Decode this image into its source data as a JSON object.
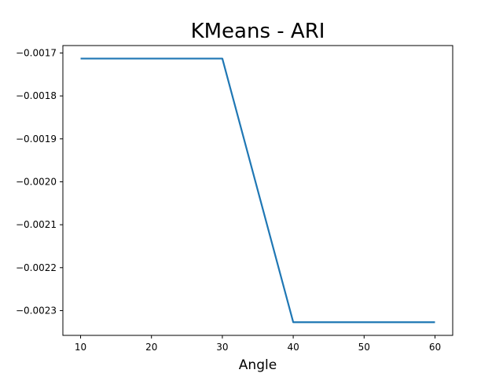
{
  "chart_data": {
    "type": "line",
    "title": "KMeans - ARI",
    "xlabel": "Angle",
    "ylabel": "",
    "x": [
      10,
      20,
      30,
      40,
      50,
      60
    ],
    "series": [
      {
        "values": [
          -0.001713,
          -0.001713,
          -0.001713,
          -0.002327,
          -0.002327,
          -0.002327
        ],
        "color": "#1f77b4"
      }
    ],
    "xticks": [
      10,
      20,
      30,
      40,
      50,
      60
    ],
    "xtick_labels": [
      "10",
      "20",
      "30",
      "40",
      "50",
      "60"
    ],
    "yticks": [
      -0.0017,
      -0.0018,
      -0.0019,
      -0.002,
      -0.0021,
      -0.0022,
      -0.0023
    ],
    "ytick_labels": [
      "−0.0017",
      "−0.0018",
      "−0.0019",
      "−0.0020",
      "−0.0021",
      "−0.0022",
      "−0.0023"
    ],
    "xlim": [
      7.5,
      62.5
    ],
    "ylim": [
      -0.0023577,
      -0.0016827
    ],
    "grid": false,
    "legend": "none"
  }
}
